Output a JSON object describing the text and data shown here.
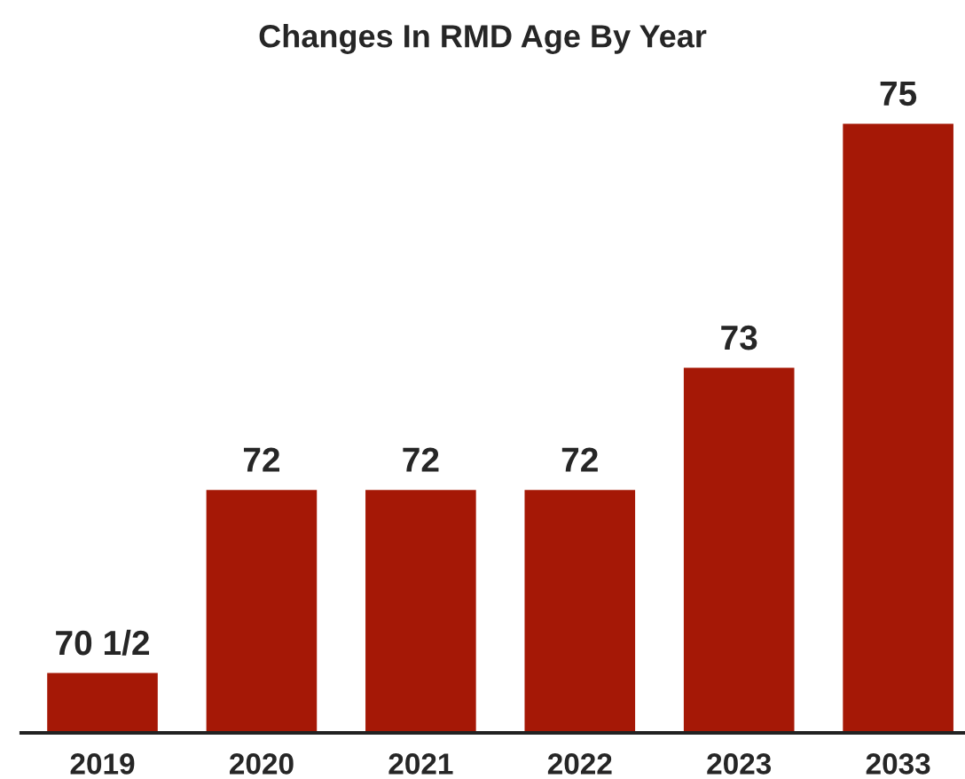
{
  "chart_data": {
    "type": "bar",
    "title": "Changes In RMD Age By Year",
    "categories": [
      "2019",
      "2020",
      "2021",
      "2022",
      "2023",
      "2033"
    ],
    "values": [
      70.5,
      72,
      72,
      72,
      73,
      75
    ],
    "value_labels": [
      "70 1/2",
      "72",
      "72",
      "72",
      "73",
      "75"
    ],
    "color": "#a51806",
    "ylim": [
      70,
      75
    ],
    "tick_labels": "x",
    "grid": false,
    "legend": false
  }
}
